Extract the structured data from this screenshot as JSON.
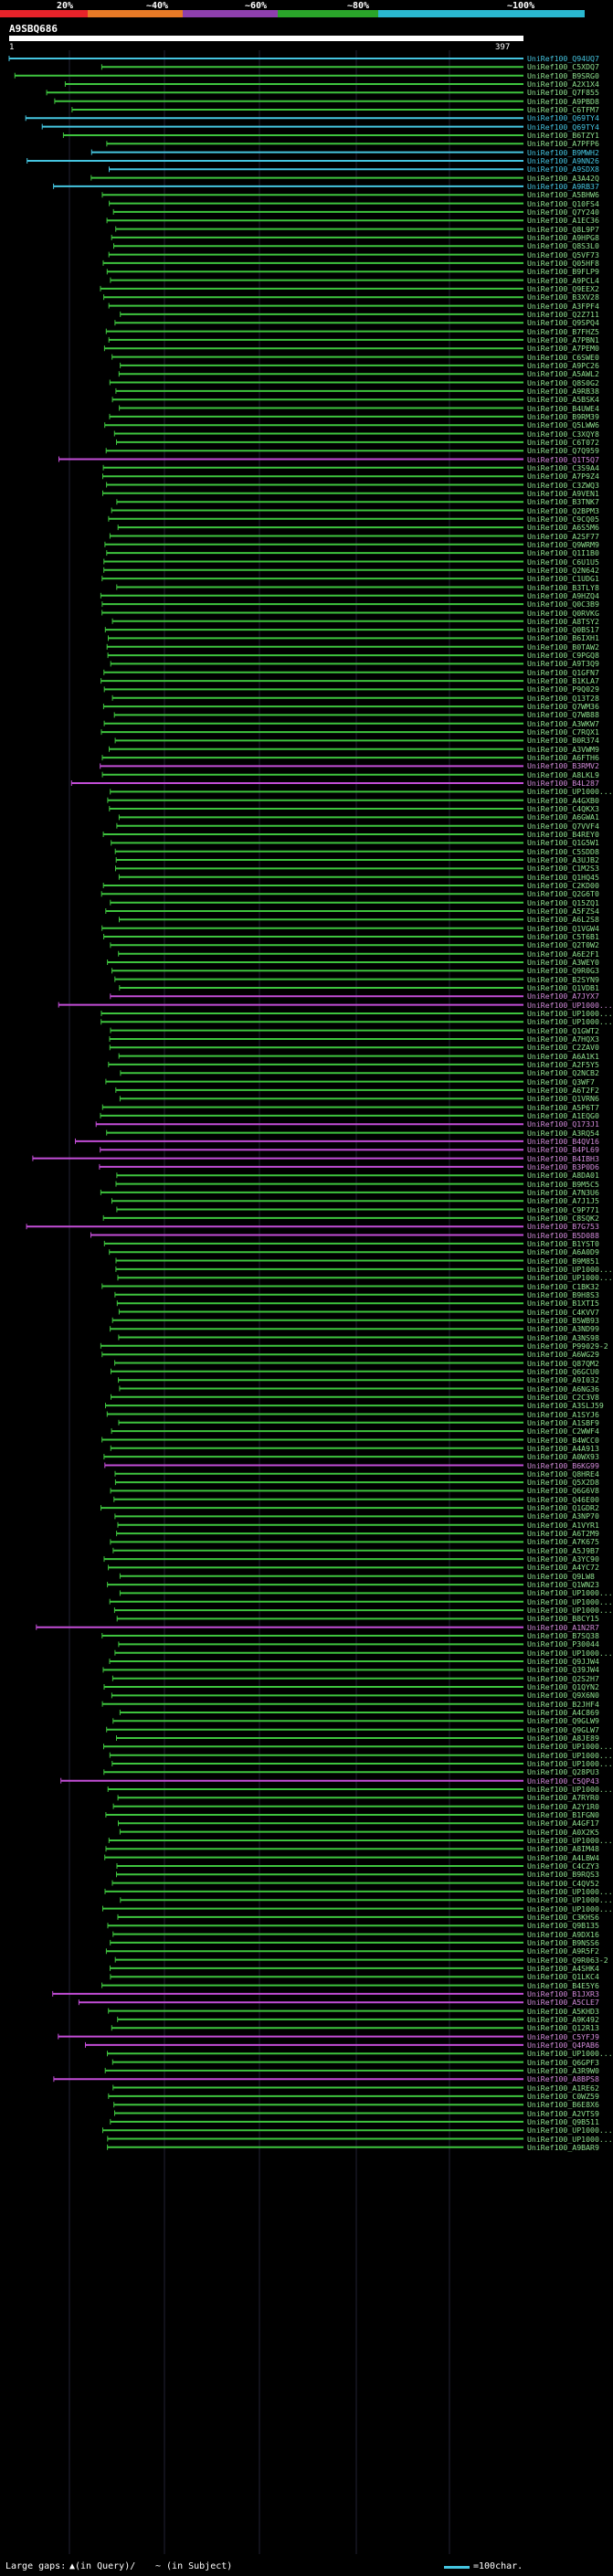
{
  "scale": {
    "labels": [
      "20%",
      "~40%",
      "~60%",
      "~80%",
      "~100%"
    ],
    "colors": [
      "#e8232a",
      "#e87a26",
      "#8e3fad",
      "#2aa52a",
      "#2ab8d0"
    ]
  },
  "query": {
    "accession": "A9SBQ686",
    "start": "1",
    "end": "397"
  },
  "colors": {
    "cyan": "#45c5e0",
    "green": "#3ec43e",
    "magenta": "#c24dd6",
    "label_cyan": "#45c5e0",
    "label_green": "#8fe08f",
    "label_magenta": "#d08ad8"
  },
  "hits": [
    {
      "name": "UniRef100_Q94UQ7",
      "c": "cyan"
    },
    {
      "name": "UniRef100_C5XDQ7",
      "c": "green"
    },
    {
      "name": "UniRef100_B9SRG0",
      "c": "green"
    },
    {
      "name": "UniRef100_A2X1X4",
      "c": "green"
    },
    {
      "name": "UniRef100_Q7F855",
      "c": "green"
    },
    {
      "name": "UniRef100_A9PBD8",
      "c": "green"
    },
    {
      "name": "UniRef100_C6TFM7",
      "c": "green"
    },
    {
      "name": "UniRef100_Q69TY4",
      "c": "cyan"
    },
    {
      "name": "UniRef100_Q69TY4",
      "c": "cyan"
    },
    {
      "name": "UniRef100_B6TZY1",
      "c": "green"
    },
    {
      "name": "UniRef100_A7PFP6",
      "c": "green"
    },
    {
      "name": "UniRef100_B9MWH2",
      "c": "cyan"
    },
    {
      "name": "UniRef100_A9NN26",
      "c": "cyan"
    },
    {
      "name": "UniRef100_A9SDX8",
      "c": "cyan"
    },
    {
      "name": "UniRef100_A3A42Q",
      "c": "green"
    },
    {
      "name": "UniRef100_A9RB37",
      "c": "cyan"
    },
    {
      "name": "UniRef100_A5BHW6",
      "c": "green"
    },
    {
      "name": "UniRef100_Q10FS4",
      "c": "green"
    },
    {
      "name": "UniRef100_Q7Y240",
      "c": "green"
    },
    {
      "name": "UniRef100_A1EC36",
      "c": "green"
    },
    {
      "name": "UniRef100_Q8L9P7",
      "c": "green"
    },
    {
      "name": "UniRef100_A9HPG8",
      "c": "green"
    },
    {
      "name": "UniRef100_Q8S3L0",
      "c": "green"
    },
    {
      "name": "UniRef100_Q5VF73",
      "c": "green"
    },
    {
      "name": "UniRef100_Q05HF8",
      "c": "green"
    },
    {
      "name": "UniRef100_B9FLP9",
      "c": "green"
    },
    {
      "name": "UniRef100_A9PCL4",
      "c": "green"
    },
    {
      "name": "UniRef100_Q9EEX2",
      "c": "green"
    },
    {
      "name": "UniRef100_B3XV28",
      "c": "green"
    },
    {
      "name": "UniRef100_A3FPF4",
      "c": "green"
    },
    {
      "name": "UniRef100_Q2Z711",
      "c": "green"
    },
    {
      "name": "UniRef100_Q9SPQ4",
      "c": "green"
    },
    {
      "name": "UniRef100_B7FHZ5",
      "c": "green"
    },
    {
      "name": "UniRef100_A7PBN1",
      "c": "green"
    },
    {
      "name": "UniRef100_A7PEM0",
      "c": "green"
    },
    {
      "name": "UniRef100_C6SWE0",
      "c": "green"
    },
    {
      "name": "UniRef100_A9PC26",
      "c": "green"
    },
    {
      "name": "UniRef100_A5AWL2",
      "c": "green"
    },
    {
      "name": "UniRef100_Q8S0G2",
      "c": "green"
    },
    {
      "name": "UniRef100_A9RB38",
      "c": "green"
    },
    {
      "name": "UniRef100_A5BSK4",
      "c": "green"
    },
    {
      "name": "UniRef100_B4UWE4",
      "c": "green"
    },
    {
      "name": "UniRef100_B9RM39",
      "c": "green"
    },
    {
      "name": "UniRef100_Q5LWW6",
      "c": "green"
    },
    {
      "name": "UniRef100_C3XQY8",
      "c": "green"
    },
    {
      "name": "UniRef100_C6T072",
      "c": "green"
    },
    {
      "name": "UniRef100_Q7Q959",
      "c": "green"
    },
    {
      "name": "UniRef100_Q1T5Q7",
      "c": "magenta"
    },
    {
      "name": "UniRef100_C3S9A4",
      "c": "green"
    },
    {
      "name": "UniRef100_A7P9Z4",
      "c": "green"
    },
    {
      "name": "UniRef100_C3ZWQ3",
      "c": "green"
    },
    {
      "name": "UniRef100_A9VEN1",
      "c": "green"
    },
    {
      "name": "UniRef100_B3TNK7",
      "c": "green"
    },
    {
      "name": "UniRef100_Q2BPM3",
      "c": "green"
    },
    {
      "name": "UniRef100_C9CQ05",
      "c": "green"
    },
    {
      "name": "UniRef100_A6S5M6",
      "c": "green"
    },
    {
      "name": "UniRef100_A2SF77",
      "c": "green"
    },
    {
      "name": "UniRef100_Q9WRM9",
      "c": "green"
    },
    {
      "name": "UniRef100_Q1I1B0",
      "c": "green"
    },
    {
      "name": "UniRef100_C6U1U5",
      "c": "green"
    },
    {
      "name": "UniRef100_Q2N642",
      "c": "green"
    },
    {
      "name": "UniRef100_C1UDG1",
      "c": "green"
    },
    {
      "name": "UniRef100_B3TLY8",
      "c": "green"
    },
    {
      "name": "UniRef100_A9HZQ4",
      "c": "green"
    },
    {
      "name": "UniRef100_Q0C3B9",
      "c": "green"
    },
    {
      "name": "UniRef100_Q0RVKG",
      "c": "green"
    },
    {
      "name": "UniRef100_A8TSY2",
      "c": "green"
    },
    {
      "name": "UniRef100_Q0BS17",
      "c": "green"
    },
    {
      "name": "UniRef100_B6IXH1",
      "c": "green"
    },
    {
      "name": "UniRef100_B0TAW2",
      "c": "green"
    },
    {
      "name": "UniRef100_C9PGQ8",
      "c": "green"
    },
    {
      "name": "UniRef100_A9T3Q9",
      "c": "green"
    },
    {
      "name": "UniRef100_Q1GFN7",
      "c": "green"
    },
    {
      "name": "UniRef100_B1KLA7",
      "c": "green"
    },
    {
      "name": "UniRef100_P9Q029",
      "c": "green"
    },
    {
      "name": "UniRef100_Q13T28",
      "c": "green"
    },
    {
      "name": "UniRef100_Q7WM36",
      "c": "green"
    },
    {
      "name": "UniRef100_Q7WB88",
      "c": "green"
    },
    {
      "name": "UniRef100_A3WKW7",
      "c": "green"
    },
    {
      "name": "UniRef100_C7RQX1",
      "c": "green"
    },
    {
      "name": "UniRef100_B0R374",
      "c": "green"
    },
    {
      "name": "UniRef100_A3VWM9",
      "c": "green"
    },
    {
      "name": "UniRef100_A6FTH6",
      "c": "green"
    },
    {
      "name": "UniRef100_B3RMV2",
      "c": "magenta"
    },
    {
      "name": "UniRef100_A8LKL9",
      "c": "green"
    },
    {
      "name": "UniRef100_B4L287",
      "c": "magenta"
    },
    {
      "name": "UniRef100_UP1000...",
      "c": "green"
    },
    {
      "name": "UniRef100_A4GXB0",
      "c": "green"
    },
    {
      "name": "UniRef100_C4QKX3",
      "c": "green"
    },
    {
      "name": "UniRef100_A6GWA1",
      "c": "green"
    },
    {
      "name": "UniRef100_Q7VVF4",
      "c": "green"
    },
    {
      "name": "UniRef100_B4REY0",
      "c": "green"
    },
    {
      "name": "UniRef100_Q1G5W1",
      "c": "green"
    },
    {
      "name": "UniRef100_C5SDD8",
      "c": "green"
    },
    {
      "name": "UniRef100_A3UJB2",
      "c": "green"
    },
    {
      "name": "UniRef100_C1M2S3",
      "c": "green"
    },
    {
      "name": "UniRef100_Q1HQ45",
      "c": "green"
    },
    {
      "name": "UniRef100_C2KD00",
      "c": "green"
    },
    {
      "name": "UniRef100_Q2G6T0",
      "c": "green"
    },
    {
      "name": "UniRef100_Q15ZQ1",
      "c": "green"
    },
    {
      "name": "UniRef100_A5FZS4",
      "c": "green"
    },
    {
      "name": "UniRef100_A6L2S8",
      "c": "green"
    },
    {
      "name": "UniRef100_Q1VGW4",
      "c": "green"
    },
    {
      "name": "UniRef100_C5T6B1",
      "c": "green"
    },
    {
      "name": "UniRef100_Q2T0W2",
      "c": "green"
    },
    {
      "name": "UniRef100_A6E2F1",
      "c": "green"
    },
    {
      "name": "UniRef100_A3WEY0",
      "c": "green"
    },
    {
      "name": "UniRef100_Q9R0G3",
      "c": "green"
    },
    {
      "name": "UniRef100_B2SYN9",
      "c": "green"
    },
    {
      "name": "UniRef100_Q1VDB1",
      "c": "green"
    },
    {
      "name": "UniRef100_A7JYX7",
      "c": "magenta"
    },
    {
      "name": "UniRef100_UP1000...",
      "c": "magenta"
    },
    {
      "name": "UniRef100_UP1000...",
      "c": "green"
    },
    {
      "name": "UniRef100_UP1000...",
      "c": "green"
    },
    {
      "name": "UniRef100_Q1GWT2",
      "c": "green"
    },
    {
      "name": "UniRef100_A7HQX3",
      "c": "green"
    },
    {
      "name": "UniRef100_C2ZAV0",
      "c": "green"
    },
    {
      "name": "UniRef100_A6A1K1",
      "c": "green"
    },
    {
      "name": "UniRef100_A2F5Y5",
      "c": "green"
    },
    {
      "name": "UniRef100_Q2NCB2",
      "c": "green"
    },
    {
      "name": "UniRef100_Q3WF7",
      "c": "green"
    },
    {
      "name": "UniRef100_A6T2F2",
      "c": "green"
    },
    {
      "name": "UniRef100_Q1VRN6",
      "c": "green"
    },
    {
      "name": "UniRef100_A5P6T7",
      "c": "green"
    },
    {
      "name": "UniRef100_A1EQG0",
      "c": "green"
    },
    {
      "name": "UniRef100_Q173J1",
      "c": "magenta"
    },
    {
      "name": "UniRef100_A3RQ54",
      "c": "green"
    },
    {
      "name": "UniRef100_B4QV16",
      "c": "magenta"
    },
    {
      "name": "UniRef100_B4PL69",
      "c": "magenta"
    },
    {
      "name": "UniRef100_B4IBH3",
      "c": "magenta"
    },
    {
      "name": "UniRef100_B3P0D6",
      "c": "magenta"
    },
    {
      "name": "UniRef100_A8DA01",
      "c": "green"
    },
    {
      "name": "UniRef100_B9M5C5",
      "c": "green"
    },
    {
      "name": "UniRef100_A7N3U6",
      "c": "green"
    },
    {
      "name": "UniRef100_A7J1J5",
      "c": "green"
    },
    {
      "name": "UniRef100_C9P771",
      "c": "green"
    },
    {
      "name": "UniRef100_C8SQK2",
      "c": "green"
    },
    {
      "name": "UniRef100_B7G753",
      "c": "magenta"
    },
    {
      "name": "UniRef100_B5D088",
      "c": "magenta"
    },
    {
      "name": "UniRef100_B1YST0",
      "c": "green"
    },
    {
      "name": "UniRef100_A6A0D9",
      "c": "green"
    },
    {
      "name": "UniRef100_B9M851",
      "c": "green"
    },
    {
      "name": "UniRef100_UP1000...",
      "c": "green"
    },
    {
      "name": "UniRef100_UP1000...",
      "c": "green"
    },
    {
      "name": "UniRef100_C1BK32",
      "c": "green"
    },
    {
      "name": "UniRef100_B9H8S3",
      "c": "green"
    },
    {
      "name": "UniRef100_B1XTI5",
      "c": "green"
    },
    {
      "name": "UniRef100_C4KVV7",
      "c": "green"
    },
    {
      "name": "UniRef100_B5WB93",
      "c": "green"
    },
    {
      "name": "UniRef100_A3ND99",
      "c": "green"
    },
    {
      "name": "UniRef100_A3NS98",
      "c": "green"
    },
    {
      "name": "UniRef100_P99029-2",
      "c": "green"
    },
    {
      "name": "UniRef100_A6WG29",
      "c": "green"
    },
    {
      "name": "UniRef100_Q87QM2",
      "c": "green"
    },
    {
      "name": "UniRef100_Q6GCU0",
      "c": "green"
    },
    {
      "name": "UniRef100_A9I032",
      "c": "green"
    },
    {
      "name": "UniRef100_A6NG36",
      "c": "green"
    },
    {
      "name": "UniRef100_C2C3V8",
      "c": "green"
    },
    {
      "name": "UniRef100_A3SLJ59",
      "c": "green"
    },
    {
      "name": "UniRef100_A1SYJ6",
      "c": "green"
    },
    {
      "name": "UniRef100_A1SBF9",
      "c": "green"
    },
    {
      "name": "UniRef100_C2WWF4",
      "c": "green"
    },
    {
      "name": "UniRef100_B4WCC0",
      "c": "green"
    },
    {
      "name": "UniRef100_A4A913",
      "c": "green"
    },
    {
      "name": "UniRef100_A0WX93",
      "c": "green"
    },
    {
      "name": "UniRef100_B6KG99",
      "c": "magenta"
    },
    {
      "name": "UniRef100_Q8HRE4",
      "c": "green"
    },
    {
      "name": "UniRef100_Q5X2D8",
      "c": "green"
    },
    {
      "name": "UniRef100_Q6G6V8",
      "c": "green"
    },
    {
      "name": "UniRef100_Q46E00",
      "c": "green"
    },
    {
      "name": "UniRef100_Q1GDR2",
      "c": "green"
    },
    {
      "name": "UniRef100_A3NP70",
      "c": "green"
    },
    {
      "name": "UniRef100_A1VYR1",
      "c": "green"
    },
    {
      "name": "UniRef100_A6T2M9",
      "c": "green"
    },
    {
      "name": "UniRef100_A7K675",
      "c": "green"
    },
    {
      "name": "UniRef100_A5J9B7",
      "c": "green"
    },
    {
      "name": "UniRef100_A3YC90",
      "c": "green"
    },
    {
      "name": "UniRef100_A4YC72",
      "c": "green"
    },
    {
      "name": "UniRef100_Q9LW8",
      "c": "green"
    },
    {
      "name": "UniRef100_Q1WN23",
      "c": "green"
    },
    {
      "name": "UniRef100_UP1000...",
      "c": "green"
    },
    {
      "name": "UniRef100_UP1000...",
      "c": "green"
    },
    {
      "name": "UniRef100_UP1000...",
      "c": "green"
    },
    {
      "name": "UniRef100_B8CY15",
      "c": "green"
    },
    {
      "name": "UniRef100_A1N2R7",
      "c": "magenta"
    },
    {
      "name": "UniRef100_B7SQ38",
      "c": "green"
    },
    {
      "name": "UniRef100_P30044",
      "c": "green"
    },
    {
      "name": "UniRef100_UP1000...",
      "c": "green"
    },
    {
      "name": "UniRef100_Q9JJW4",
      "c": "green"
    },
    {
      "name": "UniRef100_Q39JW4",
      "c": "green"
    },
    {
      "name": "UniRef100_Q2S2H7",
      "c": "green"
    },
    {
      "name": "UniRef100_Q1QYN2",
      "c": "green"
    },
    {
      "name": "UniRef100_Q9X6N0",
      "c": "green"
    },
    {
      "name": "UniRef100_B2JHF4",
      "c": "green"
    },
    {
      "name": "UniRef100_A4C869",
      "c": "green"
    },
    {
      "name": "UniRef100_Q9GLW9",
      "c": "green"
    },
    {
      "name": "UniRef100_Q9GLW7",
      "c": "green"
    },
    {
      "name": "UniRef100_A8JE89",
      "c": "green"
    },
    {
      "name": "UniRef100_UP1000...",
      "c": "green"
    },
    {
      "name": "UniRef100_UP1000...",
      "c": "green"
    },
    {
      "name": "UniRef100_UP1000...",
      "c": "green"
    },
    {
      "name": "UniRef100_Q28PU3",
      "c": "green"
    },
    {
      "name": "UniRef100_C5QP43",
      "c": "magenta"
    },
    {
      "name": "UniRef100_UP1000...",
      "c": "green"
    },
    {
      "name": "UniRef100_A7RYR0",
      "c": "green"
    },
    {
      "name": "UniRef100_A2Y1R0",
      "c": "green"
    },
    {
      "name": "UniRef100_B1FGN0",
      "c": "green"
    },
    {
      "name": "UniRef100_A4GF17",
      "c": "green"
    },
    {
      "name": "UniRef100_A0X2K5",
      "c": "green"
    },
    {
      "name": "UniRef100_UP1000...",
      "c": "green"
    },
    {
      "name": "UniRef100_A8IM48",
      "c": "green"
    },
    {
      "name": "UniRef100_A4LBW4",
      "c": "green"
    },
    {
      "name": "UniRef100_C4CZY3",
      "c": "green"
    },
    {
      "name": "UniRef100_B9RQS3",
      "c": "green"
    },
    {
      "name": "UniRef100_C4QV52",
      "c": "green"
    },
    {
      "name": "UniRef100_UP1000...",
      "c": "green"
    },
    {
      "name": "UniRef100_UP1000...",
      "c": "green"
    },
    {
      "name": "UniRef100_UP1000...",
      "c": "green"
    },
    {
      "name": "UniRef100_C3KHS6",
      "c": "green"
    },
    {
      "name": "UniRef100_Q9B135",
      "c": "green"
    },
    {
      "name": "UniRef100_A9DX16",
      "c": "green"
    },
    {
      "name": "UniRef100_B9NSS6",
      "c": "green"
    },
    {
      "name": "UniRef100_A9R5F2",
      "c": "green"
    },
    {
      "name": "UniRef100_Q9R063-2",
      "c": "green"
    },
    {
      "name": "UniRef100_A4SHK4",
      "c": "green"
    },
    {
      "name": "UniRef100_Q1LKC4",
      "c": "green"
    },
    {
      "name": "UniRef100_B4E5Y6",
      "c": "green"
    },
    {
      "name": "UniRef100_B1JXR3",
      "c": "magenta"
    },
    {
      "name": "UniRef100_A5CLE7",
      "c": "magenta"
    },
    {
      "name": "UniRef100_A5KHD3",
      "c": "green"
    },
    {
      "name": "UniRef100_A9K492",
      "c": "green"
    },
    {
      "name": "UniRef100_Q12R13",
      "c": "green"
    },
    {
      "name": "UniRef100_C5YFJ9",
      "c": "magenta"
    },
    {
      "name": "UniRef100_Q4PAB6",
      "c": "magenta"
    },
    {
      "name": "UniRef100_UP1000...",
      "c": "green"
    },
    {
      "name": "UniRef100_Q6GPF3",
      "c": "green"
    },
    {
      "name": "UniRef100_A3R9W0",
      "c": "green"
    },
    {
      "name": "UniRef100_A8BPS8",
      "c": "magenta"
    },
    {
      "name": "UniRef100_A1RE62",
      "c": "green"
    },
    {
      "name": "UniRef100_C0WZ59",
      "c": "green"
    },
    {
      "name": "UniRef100_B6E8X6",
      "c": "green"
    },
    {
      "name": "UniRef100_A2VTS9",
      "c": "green"
    },
    {
      "name": "UniRef100_Q9B511",
      "c": "green"
    },
    {
      "name": "UniRef100_UP1000...",
      "c": "green"
    },
    {
      "name": "UniRef100_UP1000...",
      "c": "green"
    },
    {
      "name": "UniRef100_A9BAR9",
      "c": "green"
    }
  ],
  "legend": {
    "text": "Large gaps:",
    "caret_note": "▲(in Query)/",
    "dash_note": "~ (in Subject)",
    "scale_note": "=100char."
  }
}
